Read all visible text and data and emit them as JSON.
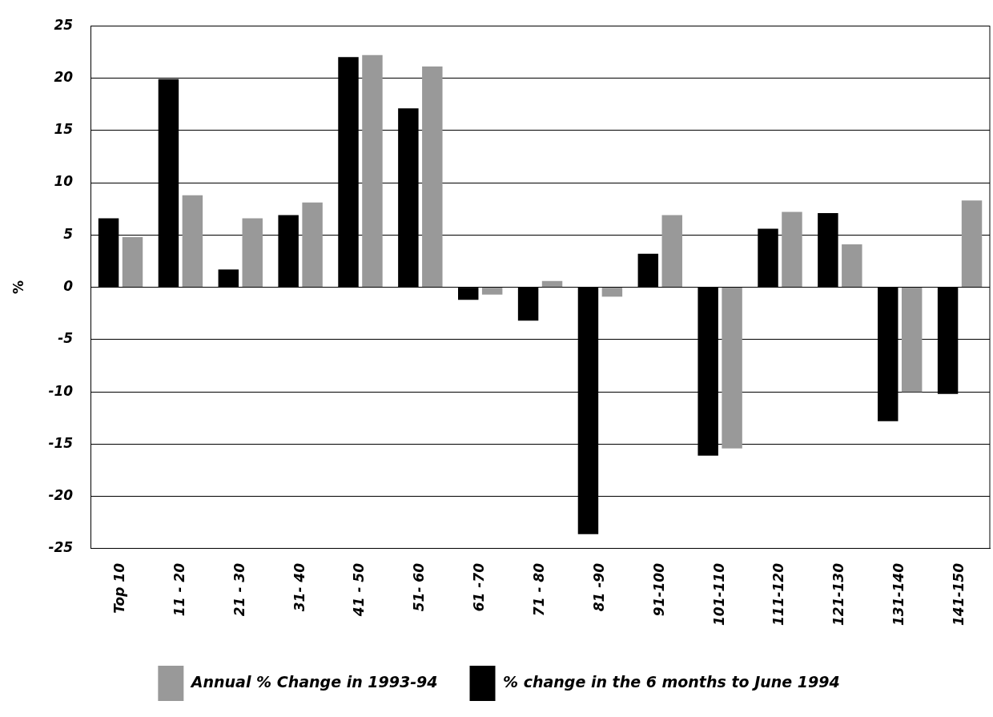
{
  "chart_data": {
    "type": "bar",
    "ylabel": "%",
    "categories": [
      "Top 10",
      "11 - 20",
      "21 - 30",
      "31- 40",
      "41 - 50",
      "51- 60",
      "61 -70",
      "71 - 80",
      "81 -90",
      "91-100",
      "101-110",
      "111-120",
      "121-130",
      "131-140",
      "141-150"
    ],
    "series": [
      {
        "name": "% change in the 6 months to June 1994",
        "color": "#000000",
        "values": [
          6.6,
          19.9,
          1.7,
          6.9,
          22.0,
          17.1,
          -1.2,
          -3.2,
          -23.6,
          3.2,
          -16.1,
          5.6,
          7.1,
          -12.8,
          -10.2
        ]
      },
      {
        "name": "Annual % Change in 1993-94",
        "color": "#999999",
        "values": [
          4.8,
          8.8,
          6.6,
          8.1,
          22.2,
          21.1,
          -0.7,
          0.6,
          -0.9,
          6.9,
          -15.4,
          7.2,
          4.1,
          -10.0,
          8.3
        ]
      }
    ],
    "ylim": [
      -25,
      25
    ],
    "yticks": [
      -25,
      -20,
      -15,
      -10,
      -5,
      0,
      5,
      10,
      15,
      20,
      25
    ],
    "grid": "y",
    "legend": "bottom"
  }
}
